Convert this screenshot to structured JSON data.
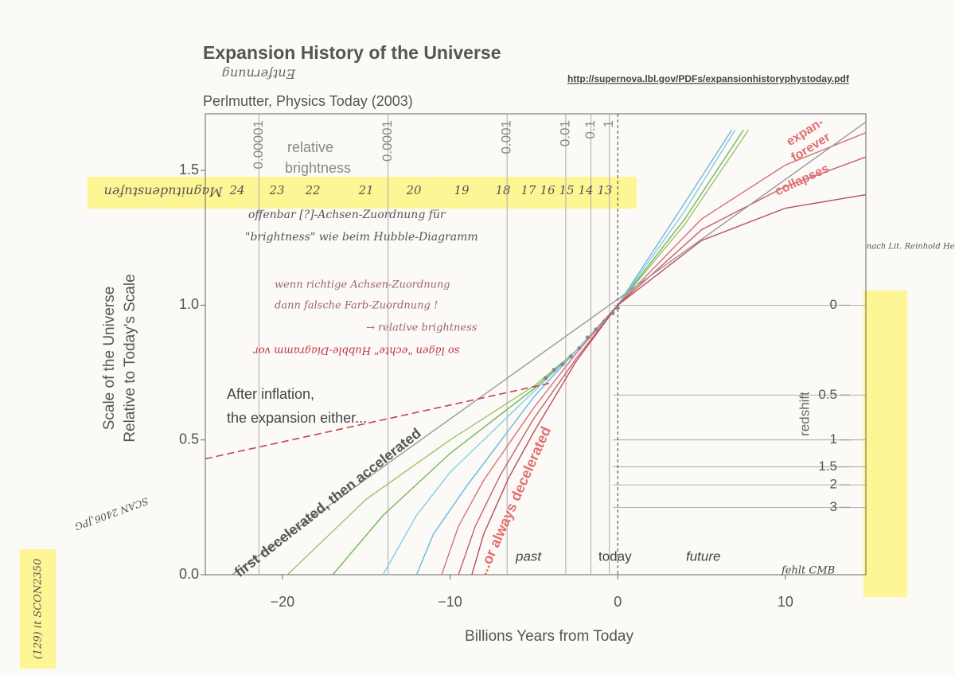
{
  "chart_data": {
    "type": "line",
    "title": "Expansion History of the Universe",
    "subtitle": "Perlmutter, Physics Today (2003)",
    "source": "http://supernova.lbl.gov/PDFs/expansionhistoryphystoday.pdf",
    "xlabel": "Billions Years from Today",
    "ylabel": [
      "Scale of the Universe",
      "Relative to Today's Scale"
    ],
    "xlim": [
      -24.6,
      14.8
    ],
    "ylim": [
      0,
      1.71
    ],
    "xticks": [
      {
        "value": -20,
        "label": "−20"
      },
      {
        "value": -10,
        "label": "−10"
      },
      0,
      10
    ],
    "yticks": [
      {
        "value": 0,
        "label": "0.0"
      },
      0.5,
      {
        "value": 1,
        "label": "1.0"
      },
      1.5
    ],
    "grid": false,
    "series": [
      {
        "color": "#9bc46a",
        "x": [
          -19.7,
          -15,
          -10,
          -5,
          -2.5,
          0,
          4,
          7.8
        ],
        "values": [
          0,
          0.28,
          0.5,
          0.7,
          0.83,
          1,
          1.3,
          1.65
        ]
      },
      {
        "color": "#6fb85a",
        "x": [
          -17,
          -14,
          -10,
          -5,
          -2.5,
          0,
          4,
          7.5
        ],
        "values": [
          0,
          0.22,
          0.45,
          0.69,
          0.83,
          1,
          1.32,
          1.65
        ]
      },
      {
        "color": "#86cbe3",
        "x": [
          -14,
          -12,
          -10,
          -5,
          -2.5,
          0,
          4,
          7
        ],
        "values": [
          0,
          0.22,
          0.38,
          0.68,
          0.83,
          1,
          1.35,
          1.65
        ]
      },
      {
        "color": "#6ab8dc",
        "x": [
          -12,
          -11,
          -9,
          -5,
          -2.5,
          0,
          4,
          6.8
        ],
        "values": [
          0,
          0.15,
          0.33,
          0.66,
          0.83,
          1,
          1.38,
          1.65
        ]
      },
      {
        "color": "#d8707a",
        "x": [
          -10.5,
          -9.5,
          -8,
          -5,
          -2.5,
          0,
          5,
          10,
          14.8
        ],
        "values": [
          0,
          0.18,
          0.35,
          0.62,
          0.82,
          1,
          1.32,
          1.52,
          1.64
        ]
      },
      {
        "color": "#c85f6b",
        "x": [
          -9.5,
          -8.5,
          -7,
          -5,
          -2.5,
          0,
          5,
          10,
          14.8
        ],
        "values": [
          0,
          0.18,
          0.37,
          0.58,
          0.8,
          1,
          1.28,
          1.44,
          1.55
        ]
      },
      {
        "color": "#b84d5c",
        "x": [
          -8.7,
          -8,
          -6.5,
          -5,
          -2.5,
          0,
          5,
          10,
          14.8
        ],
        "values": [
          0,
          0.15,
          0.36,
          0.53,
          0.79,
          1,
          1.24,
          1.36,
          1.41
        ]
      },
      {
        "color": "#999999",
        "x": [
          -23,
          14.8
        ],
        "values": [
          0,
          1.68
        ]
      },
      {
        "color": "#c8404a",
        "dash": true,
        "x": [
          -24.6,
          -4.1
        ],
        "values": [
          0.43,
          0.71
        ]
      }
    ],
    "points": {
      "color": "#888888",
      "x": [
        -4.3,
        -3.8,
        -3.3,
        -2.8,
        -2.3,
        -1.8,
        -1.3,
        -0.8,
        -0.3,
        0
      ],
      "values": [
        0.73,
        0.76,
        0.78,
        0.81,
        0.84,
        0.88,
        0.91,
        0.94,
        0.97,
        0.99
      ]
    },
    "brightness_ticks": [
      1e-05,
      0.0001,
      0.001,
      0.01,
      0.1,
      1
    ],
    "redshift_label": "redshift",
    "redshift_ticks": [
      0,
      0.5,
      1,
      1.5,
      2,
      3
    ],
    "magnitudes": [
      24,
      23,
      22,
      21,
      20,
      19,
      18,
      17,
      16,
      15,
      14,
      13
    ],
    "annotations": [
      "relative",
      "brightness",
      "After inflation,",
      "the expansion either...",
      "first decelerated, then accelerated",
      "...or always decelerated",
      "expan-",
      "forever",
      "collapses",
      "past",
      "today",
      "future"
    ],
    "notes": [
      "Entfernung",
      "Magnitudenstufen",
      "offenbar [?]-Achsen-Zuordnung für",
      "\"brightness\" wie beim Hubble-Diagramm",
      "wenn richtige Achsen-Zuordnung",
      "dann falsche Farb-Zuordnung !",
      "→ relative brightness",
      "so lägen \"echte\" Hubble-Diagramm vor",
      "nach Lit. Reinhold Henkel",
      "fehlt CMB",
      "SCAN 2406.JPG",
      "(129) it SCON2350"
    ]
  }
}
